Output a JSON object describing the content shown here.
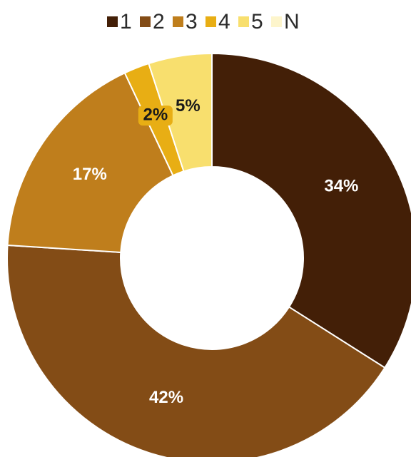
{
  "chart_data": {
    "type": "donut",
    "categories": [
      "1",
      "2",
      "3",
      "4",
      "5",
      "N"
    ],
    "values": [
      34,
      42,
      17,
      2,
      5,
      0
    ],
    "value_labels": [
      "34%",
      "42%",
      "17%",
      "2%",
      "5%",
      null
    ],
    "colors": [
      "#431f07",
      "#834c16",
      "#bf7e1c",
      "#e8ae14",
      "#f8df6e",
      "#fdf5cc"
    ],
    "legend": "top"
  }
}
